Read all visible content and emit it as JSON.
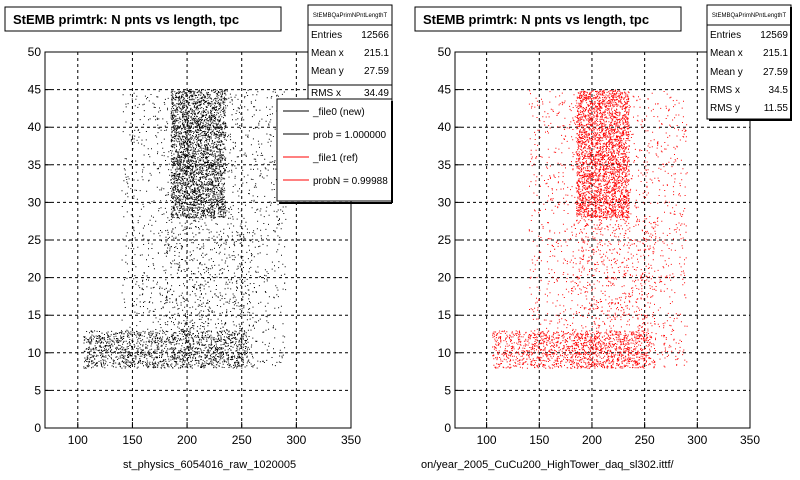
{
  "panels": [
    {
      "title": "StEMB primtrk: N pnts vs length, tpc",
      "stats_header": "StEMBQaPrimNPntLengthT",
      "stats": [
        {
          "label": "Entries",
          "value": "12566"
        },
        {
          "label": "Mean x",
          "value": "215.1"
        },
        {
          "label": "Mean y",
          "value": "27.59"
        },
        {
          "label": "RMS x",
          "value": "34.49"
        }
      ],
      "legend": [
        {
          "label": "_file0 (new)",
          "color": "#000000"
        },
        {
          "label": "prob = 1.000000",
          "color": "#000000"
        },
        {
          "label": "_file1 (ref)",
          "color": "#ff0000"
        },
        {
          "label": "probN = 0.99988",
          "color": "#ff0000"
        }
      ],
      "bottom_label": "st_physics_6054016_raw_1020005",
      "point_color": "#000000"
    },
    {
      "title": "StEMB primtrk: N pnts vs length, tpc",
      "stats_header": "StEMBQaPrimNPntLengthT",
      "stats": [
        {
          "label": "Entries",
          "value": "12569"
        },
        {
          "label": "Mean x",
          "value": "215.1"
        },
        {
          "label": "Mean y",
          "value": "27.59"
        },
        {
          "label": "RMS x",
          "value": "34.5"
        },
        {
          "label": "RMS y",
          "value": "11.55"
        }
      ],
      "bottom_label": "on/year_2005_CuCu200_HighTower_daq_sl302.ittf/",
      "point_color": "#ff0000"
    }
  ],
  "footer_note": "",
  "chart_data": [
    {
      "type": "scatter",
      "title": "StEMB primtrk: N pnts vs length, tpc",
      "xlabel": "st_physics_6054016_raw_1020005",
      "ylabel": "",
      "xlim": [
        70,
        350
      ],
      "ylim": [
        0,
        50
      ],
      "xticks": [
        100,
        150,
        200,
        250,
        300,
        350
      ],
      "yticks": [
        0,
        5,
        10,
        15,
        20,
        25,
        30,
        35,
        40,
        45,
        50
      ],
      "grid": true,
      "legend_position": "top-right",
      "series": [
        {
          "name": "_file0 (new)",
          "color": "#000000",
          "entries": 12566
        }
      ],
      "density_regions": [
        {
          "x": [
            185,
            235
          ],
          "y": [
            28,
            45
          ],
          "weight": 0.45
        },
        {
          "x": [
            105,
            255
          ],
          "y": [
            8,
            13
          ],
          "weight": 0.22
        },
        {
          "x": [
            140,
            290
          ],
          "y": [
            8,
            45
          ],
          "weight": 0.25
        },
        {
          "x": [
            180,
            260
          ],
          "y": [
            8,
            28
          ],
          "weight": 0.08
        }
      ]
    },
    {
      "type": "scatter",
      "title": "StEMB primtrk: N pnts vs length, tpc",
      "xlabel": "on/year_2005_CuCu200_HighTower_daq_sl302.ittf/",
      "ylabel": "",
      "xlim": [
        70,
        350
      ],
      "ylim": [
        0,
        50
      ],
      "xticks": [
        100,
        150,
        200,
        250,
        300,
        350
      ],
      "yticks": [
        0,
        5,
        10,
        15,
        20,
        25,
        30,
        35,
        40,
        45,
        50
      ],
      "grid": true,
      "series": [
        {
          "name": "_file1 (ref)",
          "color": "#ff0000",
          "entries": 12569
        }
      ],
      "density_regions": [
        {
          "x": [
            185,
            235
          ],
          "y": [
            28,
            45
          ],
          "weight": 0.45
        },
        {
          "x": [
            105,
            255
          ],
          "y": [
            8,
            13
          ],
          "weight": 0.22
        },
        {
          "x": [
            140,
            290
          ],
          "y": [
            8,
            45
          ],
          "weight": 0.25
        },
        {
          "x": [
            180,
            260
          ],
          "y": [
            8,
            28
          ],
          "weight": 0.08
        }
      ]
    }
  ]
}
